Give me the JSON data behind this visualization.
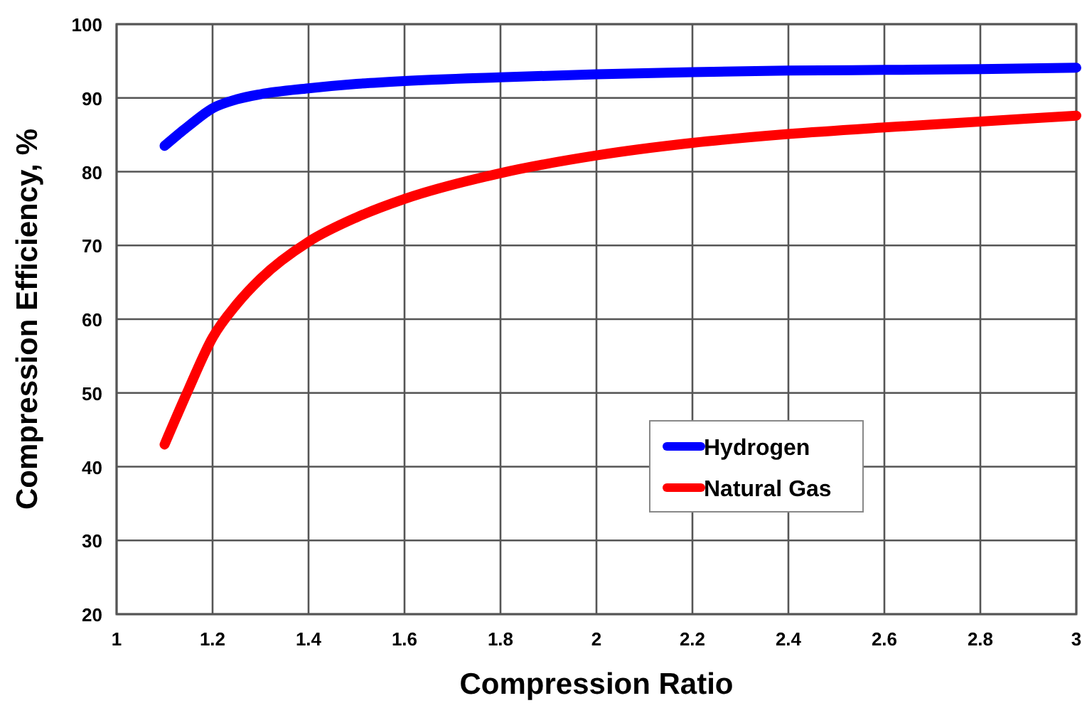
{
  "chart_data": {
    "type": "line",
    "xlabel": "Compression Ratio",
    "ylabel": "Compression Efficiency, %",
    "x": [
      1.1,
      1.15,
      1.2,
      1.25,
      1.3,
      1.4,
      1.5,
      1.6,
      1.8,
      2.0,
      2.2,
      2.4,
      2.6,
      2.8,
      3.0
    ],
    "series": [
      {
        "name": "Hydrogen",
        "color": "#0000ff",
        "values": [
          83.5,
          86.2,
          88.6,
          89.8,
          90.5,
          91.3,
          91.9,
          92.3,
          92.8,
          93.2,
          93.5,
          93.7,
          93.8,
          93.9,
          94.1
        ]
      },
      {
        "name": "Natural Gas",
        "color": "#ff0000",
        "values": [
          43,
          50.5,
          57.5,
          62,
          65.5,
          70.5,
          73.8,
          76.3,
          79.8,
          82.2,
          83.9,
          85.1,
          86,
          86.8,
          87.6
        ]
      }
    ],
    "xlim": [
      1,
      3
    ],
    "xticks": [
      1,
      1.2,
      1.4,
      1.6,
      1.8,
      2,
      2.2,
      2.4,
      2.6,
      2.8,
      3
    ],
    "ylim": [
      20,
      100
    ],
    "yticks": [
      20,
      30,
      40,
      50,
      60,
      70,
      80,
      90,
      100
    ],
    "grid": true,
    "legend": "bottom right",
    "marker": "none",
    "line_style": "solid"
  }
}
